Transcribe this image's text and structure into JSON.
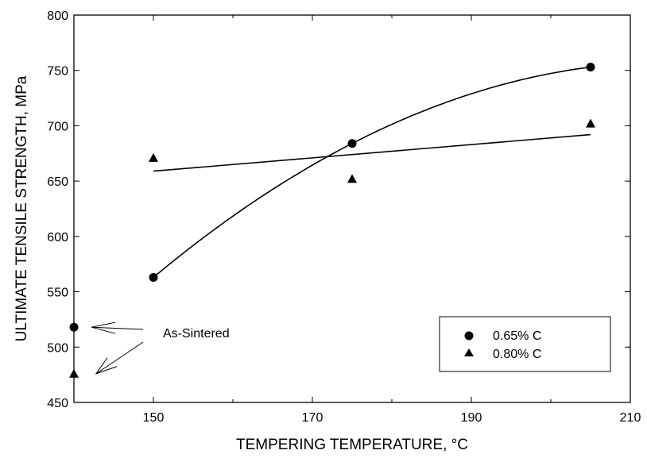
{
  "chart_data": {
    "type": "scatter",
    "xlabel": "TEMPERING TEMPERATURE, °C",
    "ylabel": "ULTIMATE TENSILE STRENGTH, MPa",
    "xlim": [
      140,
      210
    ],
    "ylim": [
      450,
      800
    ],
    "x_ticks": [
      150,
      170,
      190,
      210
    ],
    "x_minor_ticks": [
      160,
      180,
      200
    ],
    "y_ticks": [
      450,
      500,
      550,
      600,
      650,
      700,
      750,
      800
    ],
    "grid": false,
    "legend_position": "bottom-right",
    "series": [
      {
        "name": "0.65% C",
        "marker": "circle",
        "x": [
          140,
          150,
          175,
          205
        ],
        "y": [
          518,
          563,
          684,
          753
        ],
        "fit": "quadratic",
        "fit_range": [
          150,
          205
        ]
      },
      {
        "name": "0.80% C",
        "marker": "triangle",
        "x": [
          140,
          150,
          175,
          205
        ],
        "y": [
          476,
          671,
          652,
          702
        ],
        "fit": "linear",
        "fit_line": [
          [
            150,
            659
          ],
          [
            205,
            692
          ]
        ]
      }
    ],
    "annotation": {
      "text": "As-Sintered",
      "arrow_targets": [
        [
          140,
          518
        ],
        [
          140,
          476
        ]
      ]
    }
  }
}
